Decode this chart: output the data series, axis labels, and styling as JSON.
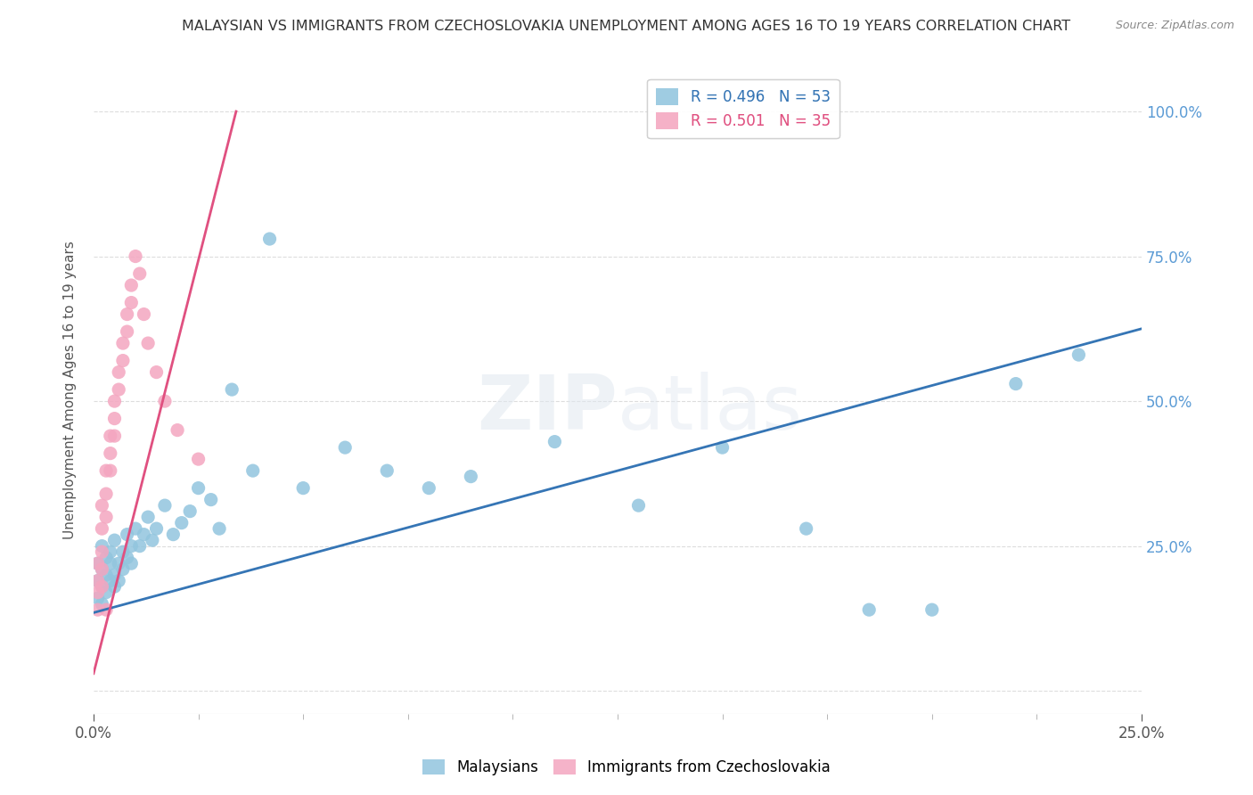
{
  "title": "MALAYSIAN VS IMMIGRANTS FROM CZECHOSLOVAKIA UNEMPLOYMENT AMONG AGES 16 TO 19 YEARS CORRELATION CHART",
  "source": "Source: ZipAtlas.com",
  "ylabel": "Unemployment Among Ages 16 to 19 years",
  "xlim": [
    0.0,
    0.25
  ],
  "ylim": [
    -0.04,
    1.08
  ],
  "blue_color": "#92c5de",
  "pink_color": "#f4a6c0",
  "blue_line_color": "#3575b5",
  "pink_line_color": "#e05080",
  "blue_line_x": [
    0.0,
    0.25
  ],
  "blue_line_y": [
    0.135,
    0.625
  ],
  "pink_line_x": [
    0.0,
    0.034
  ],
  "pink_line_y": [
    0.03,
    1.0
  ],
  "malaysians_x": [
    0.001,
    0.001,
    0.001,
    0.002,
    0.002,
    0.002,
    0.002,
    0.003,
    0.003,
    0.003,
    0.004,
    0.004,
    0.004,
    0.005,
    0.005,
    0.005,
    0.006,
    0.006,
    0.007,
    0.007,
    0.008,
    0.008,
    0.009,
    0.009,
    0.01,
    0.011,
    0.012,
    0.013,
    0.014,
    0.015,
    0.017,
    0.019,
    0.021,
    0.023,
    0.025,
    0.028,
    0.03,
    0.033,
    0.038,
    0.042,
    0.05,
    0.06,
    0.07,
    0.08,
    0.09,
    0.11,
    0.13,
    0.15,
    0.17,
    0.185,
    0.2,
    0.22,
    0.235
  ],
  "malaysians_y": [
    0.22,
    0.19,
    0.16,
    0.21,
    0.18,
    0.15,
    0.25,
    0.2,
    0.17,
    0.23,
    0.19,
    0.22,
    0.24,
    0.2,
    0.18,
    0.26,
    0.22,
    0.19,
    0.21,
    0.24,
    0.23,
    0.27,
    0.22,
    0.25,
    0.28,
    0.25,
    0.27,
    0.3,
    0.26,
    0.28,
    0.32,
    0.27,
    0.29,
    0.31,
    0.35,
    0.33,
    0.28,
    0.52,
    0.38,
    0.78,
    0.35,
    0.42,
    0.38,
    0.35,
    0.37,
    0.43,
    0.32,
    0.42,
    0.28,
    0.14,
    0.14,
    0.53,
    0.58
  ],
  "immigrants_x": [
    0.001,
    0.001,
    0.001,
    0.001,
    0.002,
    0.002,
    0.002,
    0.002,
    0.002,
    0.003,
    0.003,
    0.003,
    0.003,
    0.004,
    0.004,
    0.004,
    0.005,
    0.005,
    0.005,
    0.006,
    0.006,
    0.007,
    0.007,
    0.008,
    0.008,
    0.009,
    0.009,
    0.01,
    0.011,
    0.012,
    0.013,
    0.015,
    0.017,
    0.02,
    0.025
  ],
  "immigrants_y": [
    0.22,
    0.19,
    0.17,
    0.14,
    0.32,
    0.28,
    0.24,
    0.21,
    0.18,
    0.38,
    0.34,
    0.3,
    0.14,
    0.44,
    0.41,
    0.38,
    0.5,
    0.47,
    0.44,
    0.55,
    0.52,
    0.6,
    0.57,
    0.65,
    0.62,
    0.7,
    0.67,
    0.75,
    0.72,
    0.65,
    0.6,
    0.55,
    0.5,
    0.45,
    0.4
  ],
  "grid_color": "#dddddd",
  "bg_color": "#ffffff"
}
